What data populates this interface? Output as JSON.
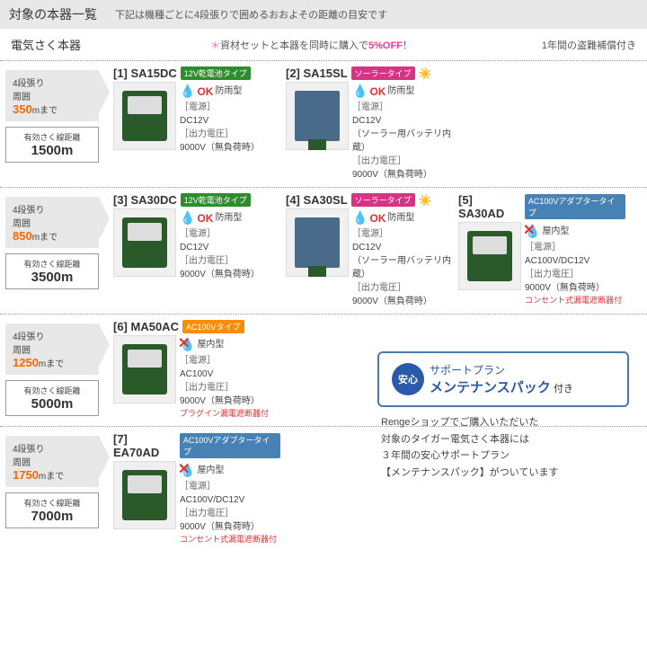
{
  "header": {
    "title": "対象の本器一覧",
    "sub": "下記は機種ごとに4段張りで囲めるおおよその距離の目安です"
  },
  "subheader": {
    "left": "電気さく本器",
    "discount_star": "＊",
    "discount_text": "資材セットと本器を同時に購入で",
    "discount_off": "5%OFF",
    "discount_excl": "！",
    "right": "1年間の盗難補償付き"
  },
  "tags": {
    "battery12v": "12V乾電池タイプ",
    "solar": "ソーラータイプ",
    "ac100v": "AC100Vタイプ",
    "ac100v_adapter": "AC100Vアダプタータイプ"
  },
  "spec_labels": {
    "power": "［電源］",
    "output": "［出力電圧］"
  },
  "ok_label": "OK",
  "rain_type": "防雨型",
  "indoor_type": "屋内型",
  "rows": [
    {
      "tiers": "4段張り",
      "peri_label": "周囲",
      "peri_val": "350",
      "peri_unit": "mまで",
      "len_label": "有効さく線距離",
      "len_val": "1500m",
      "products": [
        {
          "id": "[1] SA15DC",
          "tag": "battery12v",
          "type": "rain",
          "power": "DC12V",
          "output": "9000V（無負荷時）"
        },
        {
          "id": "[2] SA15SL",
          "tag": "solar",
          "sun": true,
          "type": "rain",
          "power": "DC12V",
          "power2": "（ソーラー用バッテリ内蔵）",
          "output": "9000V（無負荷時）"
        }
      ]
    },
    {
      "tiers": "4段張り",
      "peri_label": "周囲",
      "peri_val": "850",
      "peri_unit": "mまで",
      "len_label": "有効さく線距離",
      "len_val": "3500m",
      "products": [
        {
          "id": "[3] SA30DC",
          "tag": "battery12v",
          "type": "rain",
          "power": "DC12V",
          "output": "9000V（無負荷時）"
        },
        {
          "id": "[4] SA30SL",
          "tag": "solar",
          "sun": true,
          "type": "rain",
          "power": "DC12V",
          "power2": "（ソーラー用バッテリ内蔵）",
          "output": "9000V（無負荷時）"
        },
        {
          "id": "[5] SA30AD",
          "tag": "ac100v_adapter",
          "type": "indoor",
          "power": "AC100V/DC12V",
          "output": "9000V（無負荷時）",
          "note": "コンセント式漏電遮断器付"
        }
      ]
    },
    {
      "tiers": "4段張り",
      "peri_label": "周囲",
      "peri_val": "1250",
      "peri_unit": "mまで",
      "len_label": "有効さく線距離",
      "len_val": "5000m",
      "products": [
        {
          "id": "[6] MA50AC",
          "tag": "ac100v",
          "type": "indoor",
          "power": "AC100V",
          "output": "9000V（無負荷時）",
          "note": "プラグイン漏電遮断器付"
        }
      ]
    },
    {
      "tiers": "4段張り",
      "peri_label": "周囲",
      "peri_val": "1750",
      "peri_unit": "mまで",
      "len_label": "有効さく線距離",
      "len_val": "7000m",
      "products": [
        {
          "id": "[7] EA70AD",
          "tag": "ac100v_adapter",
          "type": "indoor",
          "power": "AC100V/DC12V",
          "output": "9000V（無負荷時）",
          "note": "コンセント式漏電遮断器付"
        }
      ]
    }
  ],
  "support": {
    "badge": "安心",
    "line1": "サポートプラン",
    "main": "メンテナンスパック",
    "suffix": "付き",
    "desc1": "Rengeショップでご購入いただいた",
    "desc2": "対象のタイガー電気さく本器には",
    "desc3": "３年間の安心サポートプラン",
    "desc4": "【メンテナンスパック】がついています"
  }
}
